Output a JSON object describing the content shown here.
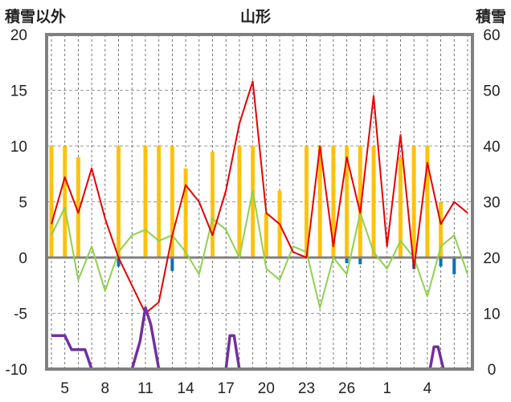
{
  "chart_data": {
    "type": "line",
    "title": "山形",
    "ylabel": "積雪以外",
    "y2label": "積雪",
    "ylim": [
      -10,
      20
    ],
    "y2lim": [
      0,
      60
    ],
    "yticks": [
      20,
      15,
      10,
      5,
      0,
      -5,
      -10
    ],
    "y2ticks": [
      60,
      50,
      40,
      30,
      20,
      10,
      0
    ],
    "xticks": [
      "5",
      "8",
      "11",
      "14",
      "17",
      "20",
      "23",
      "26",
      "1",
      "4"
    ],
    "grid": true,
    "colors": {
      "temperature_max": "#e60000",
      "temperature_min": "#8fd14f",
      "sunshine": "#ffc000",
      "precipitation": "#0070c0",
      "snow_depth": "#7030a0"
    },
    "series": [
      {
        "name": "",
        "role": "daily-max-temperature",
        "axis": "left",
        "x": [
          0,
          1,
          2,
          3,
          4,
          5,
          6,
          7,
          8,
          9,
          10,
          11,
          12,
          13,
          14,
          15,
          16,
          17,
          18,
          19,
          20,
          21,
          22,
          23,
          24,
          25,
          26,
          27,
          28,
          29,
          30,
          31
        ],
        "values": [
          3.0,
          7.2,
          4.0,
          8.0,
          3.5,
          0.0,
          -2.5,
          -5.0,
          -4.0,
          2.0,
          6.5,
          5.0,
          2.0,
          6.0,
          12.0,
          15.8,
          4.0,
          3.0,
          0.5,
          0.0,
          10.0,
          1.0,
          9.0,
          4.0,
          14.5,
          1.0,
          11.0,
          -1.0,
          8.5,
          3.0,
          5.0,
          4.0
        ]
      },
      {
        "name": "",
        "role": "daily-min-temperature",
        "axis": "left",
        "x": [
          0,
          1,
          2,
          3,
          4,
          5,
          6,
          7,
          8,
          9,
          10,
          11,
          12,
          13,
          14,
          15,
          16,
          17,
          18,
          19,
          20,
          21,
          22,
          23,
          24,
          25,
          26,
          27,
          28,
          29,
          30,
          31
        ],
        "values": [
          2.0,
          4.5,
          -2.0,
          1.0,
          -3.0,
          0.5,
          2.0,
          2.5,
          1.5,
          2.0,
          0.5,
          -1.5,
          3.5,
          2.5,
          0.0,
          6.0,
          -1.0,
          -2.0,
          1.0,
          0.5,
          -4.5,
          0.0,
          -1.5,
          4.0,
          0.5,
          -1.0,
          1.5,
          0.0,
          -3.5,
          1.0,
          2.0,
          -1.5
        ]
      },
      {
        "name": "",
        "role": "sunshine-hours",
        "axis": "left",
        "x": [
          0,
          1,
          2,
          5,
          7,
          8,
          9,
          10,
          12,
          14,
          15,
          16,
          17,
          19,
          20,
          21,
          22,
          23,
          24,
          26,
          27,
          28,
          29
        ],
        "values": [
          10.0,
          10.0,
          9.0,
          10.0,
          10.0,
          10.0,
          10.0,
          8.0,
          9.5,
          10.0,
          10.0,
          4.0,
          6.0,
          10.0,
          10.0,
          10.0,
          10.0,
          10.0,
          10.0,
          9.0,
          10.0,
          10.0,
          5.0
        ]
      },
      {
        "name": "",
        "role": "precipitation",
        "axis": "left",
        "x": [
          5,
          9,
          22,
          23,
          27,
          29,
          30
        ],
        "values": [
          -0.8,
          -1.2,
          -0.5,
          -0.6,
          -1.0,
          -0.8,
          -1.5
        ]
      },
      {
        "name": "",
        "role": "snow-depth",
        "axis": "right",
        "x": [
          0,
          1,
          1.5,
          2.5,
          3,
          5.5,
          6,
          6.6,
          7,
          7.4,
          8,
          13,
          13.3,
          13.6,
          14,
          28.2,
          28.5,
          28.8,
          29.2,
          31
        ],
        "values": [
          6,
          6,
          3.5,
          3.5,
          0,
          0,
          0,
          5,
          11,
          8,
          0,
          0,
          6,
          6,
          0,
          0,
          4,
          4,
          0,
          0
        ]
      }
    ]
  }
}
